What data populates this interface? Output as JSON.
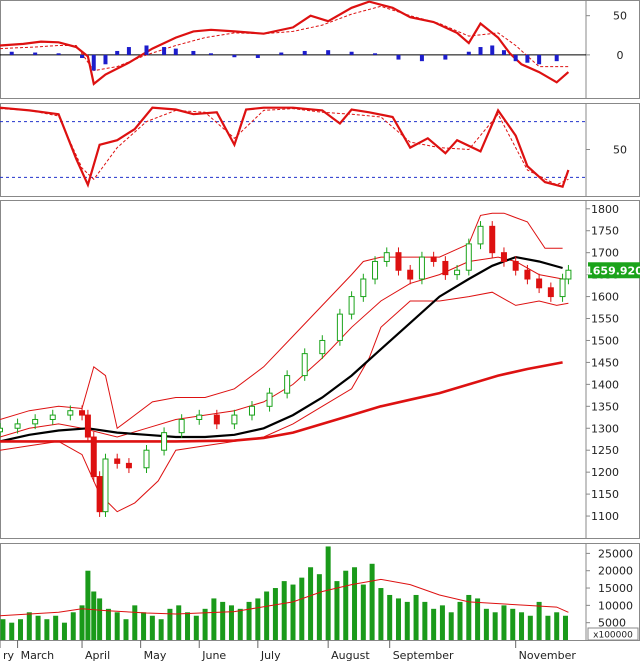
{
  "chart_data": [
    {
      "type": "line",
      "panel": "macd",
      "y_ticks": [
        50,
        0
      ],
      "ylim": [
        -55,
        70
      ],
      "zero_line": 0,
      "series": [
        {
          "role": "macd",
          "color": "#dd1111",
          "x": [
            0,
            0.04,
            0.07,
            0.1,
            0.13,
            0.15,
            0.16,
            0.18,
            0.22,
            0.26,
            0.3,
            0.33,
            0.36,
            0.4,
            0.45,
            0.5,
            0.53,
            0.56,
            0.6,
            0.63,
            0.67,
            0.7,
            0.74,
            0.78,
            0.8,
            0.82,
            0.85,
            0.87,
            0.89,
            0.92,
            0.95,
            0.97
          ],
          "values": [
            12,
            14,
            17,
            16,
            10,
            -2,
            -37,
            -25,
            -10,
            8,
            22,
            30,
            32,
            30,
            27,
            35,
            50,
            43,
            60,
            68,
            60,
            48,
            42,
            28,
            15,
            40,
            22,
            2,
            -12,
            -22,
            -35,
            -22
          ]
        },
        {
          "role": "signal",
          "color": "#dd1111",
          "dashed": true,
          "x": [
            0,
            0.06,
            0.1,
            0.13,
            0.16,
            0.2,
            0.25,
            0.3,
            0.35,
            0.4,
            0.45,
            0.5,
            0.55,
            0.6,
            0.65,
            0.7,
            0.75,
            0.8,
            0.85,
            0.88,
            0.92,
            0.97
          ],
          "values": [
            8,
            10,
            12,
            12,
            -20,
            -15,
            0,
            12,
            22,
            28,
            27,
            30,
            38,
            52,
            62,
            50,
            40,
            24,
            28,
            12,
            -15,
            -15
          ]
        },
        {
          "role": "histogram",
          "type": "bar",
          "color": "#1d1dcc",
          "x": [
            0.02,
            0.06,
            0.1,
            0.14,
            0.16,
            0.18,
            0.2,
            0.22,
            0.25,
            0.28,
            0.3,
            0.33,
            0.36,
            0.4,
            0.44,
            0.48,
            0.52,
            0.56,
            0.6,
            0.64,
            0.68,
            0.72,
            0.76,
            0.8,
            0.82,
            0.84,
            0.86,
            0.88,
            0.9,
            0.92,
            0.95
          ],
          "values": [
            4,
            3,
            2,
            -4,
            -20,
            -12,
            5,
            10,
            12,
            10,
            8,
            5,
            2,
            -3,
            -4,
            3,
            5,
            6,
            4,
            2,
            -6,
            -8,
            -6,
            4,
            10,
            12,
            6,
            -8,
            -10,
            -12,
            -8
          ]
        }
      ]
    },
    {
      "type": "line",
      "panel": "stochastic",
      "y_ticks": [
        50
      ],
      "ylim": [
        0,
        100
      ],
      "ref_lines": [
        80,
        20
      ],
      "series": [
        {
          "role": "k",
          "color": "#dd1111",
          "x": [
            0,
            0.05,
            0.1,
            0.13,
            0.15,
            0.17,
            0.2,
            0.23,
            0.26,
            0.3,
            0.33,
            0.37,
            0.4,
            0.42,
            0.45,
            0.5,
            0.55,
            0.58,
            0.6,
            0.63,
            0.67,
            0.7,
            0.73,
            0.76,
            0.78,
            0.82,
            0.85,
            0.88,
            0.9,
            0.93,
            0.96,
            0.97
          ],
          "values": [
            95,
            92,
            88,
            40,
            12,
            55,
            60,
            72,
            95,
            93,
            88,
            90,
            55,
            93,
            95,
            95,
            92,
            78,
            93,
            90,
            85,
            52,
            62,
            46,
            60,
            48,
            92,
            65,
            32,
            15,
            10,
            28
          ]
        },
        {
          "role": "d",
          "color": "#dd1111",
          "dashed": true,
          "x": [
            0,
            0.05,
            0.1,
            0.14,
            0.16,
            0.2,
            0.25,
            0.3,
            0.35,
            0.4,
            0.45,
            0.5,
            0.55,
            0.6,
            0.65,
            0.7,
            0.75,
            0.8,
            0.85,
            0.9,
            0.95,
            0.97
          ],
          "values": [
            94,
            92,
            86,
            30,
            18,
            52,
            80,
            92,
            90,
            62,
            92,
            94,
            90,
            88,
            85,
            58,
            52,
            50,
            88,
            28,
            12,
            18
          ]
        }
      ]
    },
    {
      "type": "candlestick",
      "panel": "price",
      "ylim": [
        1050,
        1820
      ],
      "y_ticks": [
        1800,
        1750,
        1700,
        1650,
        1600,
        1550,
        1500,
        1450,
        1400,
        1350,
        1300,
        1250,
        1200,
        1150,
        1100
      ],
      "last_price": "1659.920",
      "last_price_color": "#1aa31a",
      "up_color": "#1aa31a",
      "down_color": "#dd1111",
      "x_points": [
        0,
        0.03,
        0.06,
        0.09,
        0.12,
        0.14,
        0.15,
        0.16,
        0.17,
        0.18,
        0.2,
        0.22,
        0.25,
        0.28,
        0.31,
        0.34,
        0.37,
        0.4,
        0.43,
        0.46,
        0.49,
        0.52,
        0.55,
        0.58,
        0.6,
        0.62,
        0.64,
        0.66,
        0.68,
        0.7,
        0.72,
        0.74,
        0.76,
        0.78,
        0.8,
        0.82,
        0.84,
        0.86,
        0.88,
        0.9,
        0.92,
        0.94,
        0.96,
        0.97
      ],
      "close": [
        1300,
        1310,
        1320,
        1330,
        1340,
        1330,
        1280,
        1190,
        1110,
        1230,
        1220,
        1210,
        1250,
        1290,
        1320,
        1330,
        1310,
        1330,
        1350,
        1380,
        1420,
        1470,
        1500,
        1560,
        1600,
        1640,
        1680,
        1700,
        1660,
        1640,
        1690,
        1680,
        1650,
        1660,
        1720,
        1760,
        1700,
        1680,
        1660,
        1640,
        1620,
        1600,
        1640,
        1660
      ],
      "overlays": [
        {
          "role": "bollinger-upper",
          "color": "#dd1111",
          "x": [
            0,
            0.05,
            0.1,
            0.14,
            0.16,
            0.18,
            0.2,
            0.23,
            0.26,
            0.3,
            0.35,
            0.4,
            0.45,
            0.5,
            0.55,
            0.6,
            0.62,
            0.65,
            0.7,
            0.75,
            0.8,
            0.82,
            0.84,
            0.86,
            0.88,
            0.9,
            0.93,
            0.96
          ],
          "values": [
            1320,
            1340,
            1350,
            1345,
            1440,
            1420,
            1300,
            1330,
            1360,
            1370,
            1370,
            1390,
            1440,
            1510,
            1580,
            1650,
            1680,
            1690,
            1690,
            1690,
            1720,
            1785,
            1790,
            1790,
            1780,
            1770,
            1710,
            1710
          ]
        },
        {
          "role": "bollinger-middle",
          "color": "#dd1111",
          "x": [
            0,
            0.05,
            0.1,
            0.14,
            0.2,
            0.25,
            0.3,
            0.35,
            0.4,
            0.45,
            0.5,
            0.55,
            0.6,
            0.65,
            0.7,
            0.75,
            0.8,
            0.85,
            0.88,
            0.92,
            0.96
          ],
          "values": [
            1280,
            1300,
            1310,
            1300,
            1280,
            1300,
            1320,
            1330,
            1340,
            1360,
            1400,
            1460,
            1530,
            1590,
            1630,
            1650,
            1680,
            1690,
            1680,
            1650,
            1640
          ]
        },
        {
          "role": "bollinger-lower",
          "color": "#dd1111",
          "x": [
            0,
            0.05,
            0.1,
            0.14,
            0.17,
            0.2,
            0.23,
            0.27,
            0.3,
            0.35,
            0.4,
            0.45,
            0.5,
            0.55,
            0.6,
            0.63,
            0.65,
            0.7,
            0.75,
            0.8,
            0.84,
            0.88,
            0.92,
            0.95,
            0.97
          ],
          "values": [
            1250,
            1260,
            1270,
            1240,
            1150,
            1110,
            1130,
            1180,
            1250,
            1260,
            1270,
            1280,
            1310,
            1350,
            1390,
            1460,
            1530,
            1590,
            1590,
            1600,
            1610,
            1580,
            1590,
            1580,
            1585
          ]
        },
        {
          "role": "ma-medium",
          "color": "#000000",
          "width": 2.2,
          "x": [
            0,
            0.05,
            0.1,
            0.15,
            0.2,
            0.25,
            0.3,
            0.35,
            0.4,
            0.45,
            0.5,
            0.55,
            0.6,
            0.65,
            0.7,
            0.75,
            0.8,
            0.84,
            0.88,
            0.92,
            0.96
          ],
          "values": [
            1270,
            1285,
            1295,
            1300,
            1290,
            1285,
            1280,
            1280,
            1285,
            1300,
            1330,
            1370,
            1420,
            1480,
            1540,
            1600,
            1640,
            1670,
            1690,
            1680,
            1665
          ]
        },
        {
          "role": "ma-long",
          "color": "#dd1111",
          "width": 2.6,
          "x": [
            0,
            0.1,
            0.2,
            0.3,
            0.4,
            0.45,
            0.5,
            0.55,
            0.6,
            0.65,
            0.7,
            0.75,
            0.8,
            0.85,
            0.9,
            0.96
          ],
          "values": [
            1270,
            1270,
            1270,
            1270,
            1272,
            1278,
            1290,
            1310,
            1330,
            1350,
            1365,
            1380,
            1400,
            1420,
            1435,
            1450
          ]
        }
      ]
    },
    {
      "type": "bar",
      "panel": "volume",
      "ylim": [
        0,
        28000
      ],
      "y_ticks": [
        25000,
        20000,
        15000,
        10000,
        5000
      ],
      "unit_label": "x100000",
      "bar_color": "#1a9a1a",
      "x": [
        0.005,
        0.02,
        0.035,
        0.05,
        0.065,
        0.08,
        0.095,
        0.11,
        0.125,
        0.14,
        0.15,
        0.16,
        0.17,
        0.185,
        0.2,
        0.215,
        0.23,
        0.245,
        0.26,
        0.275,
        0.29,
        0.305,
        0.32,
        0.335,
        0.35,
        0.365,
        0.38,
        0.395,
        0.41,
        0.425,
        0.44,
        0.455,
        0.47,
        0.485,
        0.5,
        0.515,
        0.53,
        0.545,
        0.56,
        0.575,
        0.59,
        0.605,
        0.62,
        0.635,
        0.65,
        0.665,
        0.68,
        0.695,
        0.71,
        0.725,
        0.74,
        0.755,
        0.77,
        0.785,
        0.8,
        0.815,
        0.83,
        0.845,
        0.86,
        0.875,
        0.89,
        0.905,
        0.92,
        0.935,
        0.95,
        0.965
      ],
      "values": [
        6000,
        5000,
        6000,
        8000,
        7000,
        6000,
        7000,
        5000,
        8000,
        10000,
        20000,
        14000,
        12000,
        9000,
        8000,
        6000,
        10000,
        8000,
        7000,
        6000,
        9000,
        10000,
        8000,
        7000,
        9000,
        12000,
        11000,
        10000,
        9000,
        11000,
        12000,
        14000,
        15000,
        17000,
        16000,
        18000,
        21000,
        19000,
        27000,
        17000,
        20000,
        21000,
        16000,
        22000,
        15000,
        13000,
        12000,
        11000,
        13000,
        11000,
        9000,
        10000,
        8000,
        11000,
        13000,
        12000,
        9000,
        8000,
        10000,
        9000,
        8000,
        7000,
        11000,
        7000,
        8000,
        7000
      ],
      "average": {
        "color": "#dd1111",
        "x": [
          0,
          0.1,
          0.14,
          0.18,
          0.25,
          0.3,
          0.4,
          0.5,
          0.55,
          0.6,
          0.65,
          0.7,
          0.75,
          0.8,
          0.85,
          0.9,
          0.95,
          0.97
        ],
        "values": [
          7000,
          8000,
          9000,
          8500,
          7800,
          7500,
          8200,
          11000,
          14000,
          16000,
          17500,
          16000,
          13000,
          11000,
          10500,
          10000,
          9500,
          8000
        ]
      }
    }
  ],
  "x_axis": {
    "labels": [
      {
        "text": "ry",
        "pos": 0.0
      },
      {
        "text": "March",
        "pos": 0.03
      },
      {
        "text": "April",
        "pos": 0.14
      },
      {
        "text": "May",
        "pos": 0.24
      },
      {
        "text": "June",
        "pos": 0.34
      },
      {
        "text": "July",
        "pos": 0.44
      },
      {
        "text": "August",
        "pos": 0.56
      },
      {
        "text": "September",
        "pos": 0.665
      },
      {
        "text": "November",
        "pos": 0.88
      }
    ]
  }
}
